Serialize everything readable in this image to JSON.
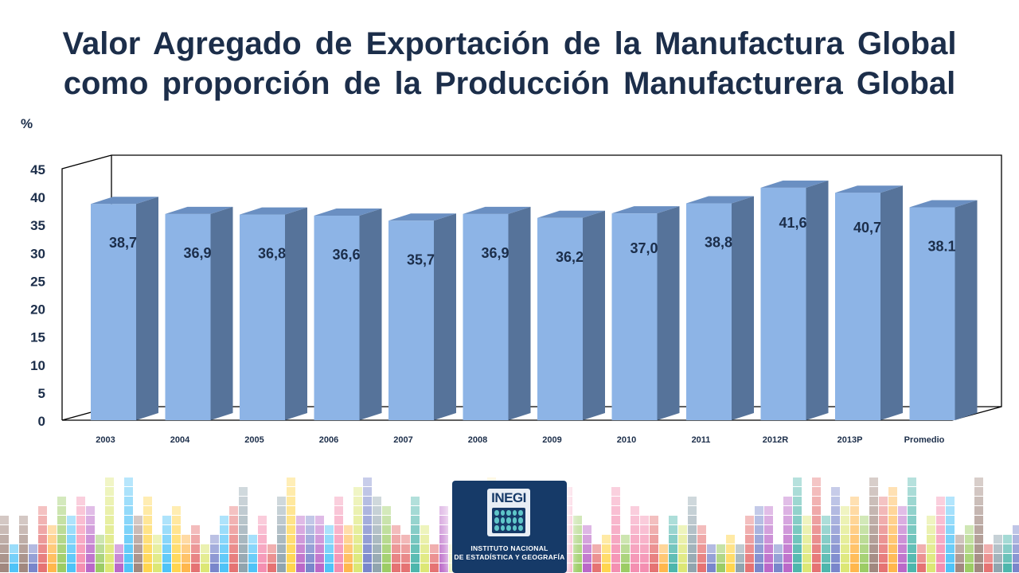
{
  "title": {
    "line1": "Valor Agregado de Exportación de la Manufactura Global",
    "line2": "como proporción de la Producción Manufacturera Global"
  },
  "chart_data": {
    "type": "bar",
    "title": "Valor Agregado de Exportación de la Manufactura Global como proporción de la Producción Manufacturera Global",
    "ylabel": "%",
    "xlabel": "",
    "categories": [
      "2003",
      "2004",
      "2005",
      "2006",
      "2007",
      "2008",
      "2009",
      "2010",
      "2011",
      "2012R",
      "2013P",
      "Promedio"
    ],
    "values": [
      38.7,
      36.9,
      36.8,
      36.6,
      35.7,
      36.9,
      36.2,
      37.0,
      38.8,
      41.6,
      40.7,
      38.1
    ],
    "data_labels": [
      "38,7",
      "36,9",
      "36,8",
      "36,6",
      "35,7",
      "36,9",
      "36,2",
      "37,0",
      "38,8",
      "41,6",
      "40,7",
      "38.1"
    ],
    "ylim": [
      0,
      45
    ],
    "yticks": [
      "0",
      "5",
      "10",
      "15",
      "20",
      "25",
      "30",
      "35",
      "40",
      "45"
    ],
    "grid": false,
    "style": "3d-column",
    "colors": {
      "bar_front": "#8db4e6",
      "bar_side": "#56739a",
      "bar_top": "#6a8fc2",
      "label": "#1c2e4a"
    }
  },
  "footer": {
    "logo_name": "INEGI",
    "logo_line1": "INSTITUTO NACIONAL",
    "logo_line2": "DE ESTADÍSTICA Y GEOGRAFÍA",
    "palette": [
      "#9ccc65",
      "#f48fb1",
      "#4fc3f7",
      "#ffd54f",
      "#e57373",
      "#ba68c8",
      "#a1887f",
      "#90a4ae",
      "#4db6ac",
      "#ffb74d",
      "#7986cb",
      "#dce775"
    ]
  }
}
